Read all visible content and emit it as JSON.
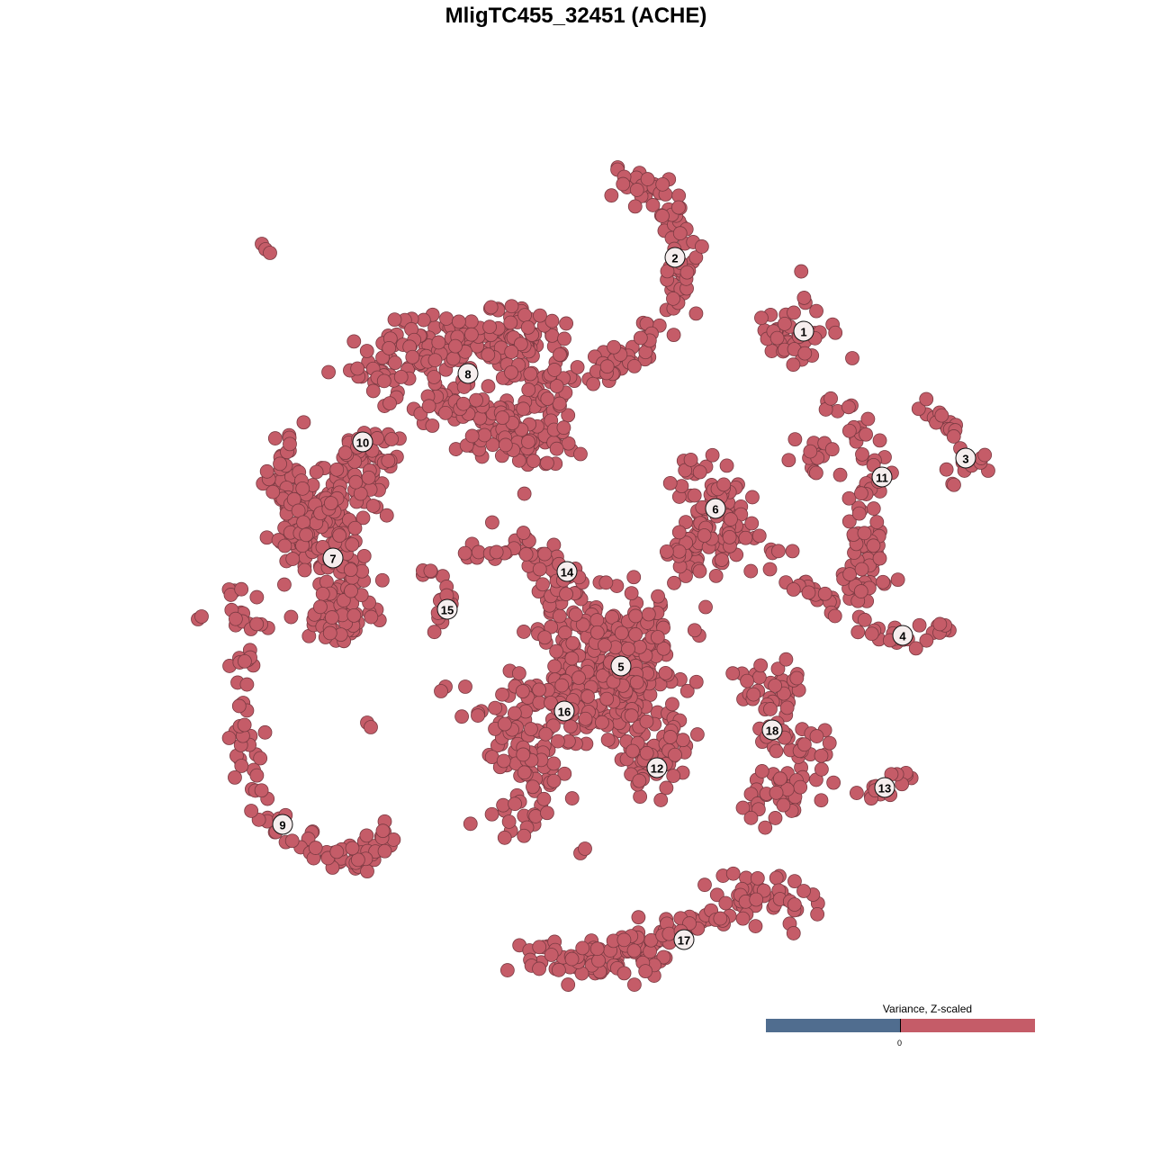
{
  "chart_data": {
    "type": "scatter",
    "title": "MligTC455_32451 (ACHE)",
    "xlabel": "",
    "ylabel": "",
    "xlim": [
      -50,
      50
    ],
    "ylim": [
      -50,
      50
    ],
    "grid": false,
    "axes_visible": false,
    "point_color": "#c55c68",
    "point_stroke": "#7a3a42",
    "legend": {
      "title": "Variance, Z-scaled",
      "placement": "bottom-right",
      "colors": [
        "#506d8f",
        "#c55c68"
      ],
      "tick_label": "0"
    },
    "clusters": [
      {
        "label": "1",
        "label_pos": [
          25.3,
          27.2
        ],
        "anchors": [
          [
            23,
            29
          ],
          [
            25,
            31
          ],
          [
            27,
            27
          ],
          [
            24,
            25
          ],
          [
            22,
            27
          ]
        ],
        "spread": 1.6,
        "n": 40
      },
      {
        "label": "2",
        "label_pos": [
          11,
          35.4
        ],
        "anchors": [
          [
            5,
            44.5
          ],
          [
            10,
            42
          ],
          [
            12.5,
            35
          ],
          [
            10,
            29
          ],
          [
            6,
            24
          ],
          [
            2.5,
            22.5
          ]
        ],
        "spread": 1.5,
        "n": 110
      },
      {
        "label": "3",
        "label_pos": [
          43.3,
          13.1
        ],
        "anchors": [
          [
            39,
            19
          ],
          [
            41,
            17
          ],
          [
            43,
            13
          ],
          [
            46,
            12
          ],
          [
            41,
            10.5
          ]
        ],
        "spread": 1.0,
        "n": 30
      },
      {
        "label": "4",
        "label_pos": [
          36.3,
          -6.6
        ],
        "anchors": [
          [
            22,
            3
          ],
          [
            25,
            -1
          ],
          [
            30,
            -5
          ],
          [
            36,
            -7
          ],
          [
            41.5,
            -6.5
          ]
        ],
        "spread": 1.0,
        "n": 50
      },
      {
        "label": "5",
        "label_pos": [
          5,
          -10
        ],
        "anchors": [
          [
            0,
            -5
          ],
          [
            5,
            -10
          ],
          [
            8,
            -6
          ],
          [
            3,
            -15
          ],
          [
            8,
            -14
          ],
          [
            -2,
            -10
          ],
          [
            4,
            -4
          ]
        ],
        "spread": 3.8,
        "n": 300
      },
      {
        "label": "6",
        "label_pos": [
          15.5,
          7.5
        ],
        "anchors": [
          [
            11,
            11
          ],
          [
            17,
            11
          ],
          [
            14,
            6
          ],
          [
            19,
            4
          ],
          [
            12,
            3
          ],
          [
            14,
            -1
          ]
        ],
        "spread": 2.3,
        "n": 110
      },
      {
        "label": "7",
        "label_pos": [
          -27,
          2
        ],
        "anchors": [
          [
            -30,
            3
          ],
          [
            -26,
            4
          ],
          [
            -25,
            -3
          ],
          [
            -25,
            -6
          ],
          [
            -28,
            -4
          ]
        ],
        "spread": 2.3,
        "n": 110
      },
      {
        "label": "8",
        "label_pos": [
          -12,
          22.5
        ],
        "anchors": [
          [
            -24,
            22
          ],
          [
            -18,
            25
          ],
          [
            -10,
            27
          ],
          [
            -5,
            26
          ],
          [
            -3,
            20
          ],
          [
            -4,
            14
          ],
          [
            -10,
            18
          ],
          [
            -16,
            19
          ]
        ],
        "spread": 2.8,
        "n": 330
      },
      {
        "label": "9",
        "label_pos": [
          -32.6,
          -27.6
        ],
        "anchors": [
          [
            -37,
            -1
          ],
          [
            -37,
            -6
          ],
          [
            -37,
            -14
          ],
          [
            -36.5,
            -22
          ],
          [
            -33,
            -27.5
          ],
          [
            -27,
            -32
          ],
          [
            -23,
            -31
          ],
          [
            -21,
            -28
          ]
        ],
        "spread": 1.2,
        "n": 110
      },
      {
        "label": "10",
        "label_pos": [
          -23.7,
          14.9
        ],
        "anchors": [
          [
            -33,
            13
          ],
          [
            -30,
            8
          ],
          [
            -31,
            4
          ],
          [
            -26,
            10
          ],
          [
            -22,
            14
          ],
          [
            -28,
            1
          ]
        ],
        "spread": 2.4,
        "n": 200
      },
      {
        "label": "11",
        "label_pos": [
          34,
          11
        ],
        "anchors": [
          [
            29,
            20
          ],
          [
            32,
            16
          ],
          [
            33,
            11
          ],
          [
            32,
            5
          ],
          [
            33,
            1
          ],
          [
            30,
            -1
          ],
          [
            35,
            -1
          ],
          [
            28,
            13
          ],
          [
            25,
            14
          ]
        ],
        "spread": 1.4,
        "n": 100
      },
      {
        "label": "12",
        "label_pos": [
          9,
          -21.3
        ],
        "anchors": [
          [
            6,
            -19
          ],
          [
            9,
            -21
          ],
          [
            11,
            -18
          ],
          [
            7,
            -24
          ]
        ],
        "spread": 2.0,
        "n": 60
      },
      {
        "label": "13",
        "label_pos": [
          34.3,
          -23.5
        ],
        "anchors": [
          [
            32,
            -23.8
          ],
          [
            34.5,
            -24
          ],
          [
            37,
            -22.2
          ]
        ],
        "spread": 0.8,
        "n": 14
      },
      {
        "label": "14",
        "label_pos": [
          -1,
          0.5
        ],
        "anchors": [
          [
            -11,
            3
          ],
          [
            -5,
            3
          ],
          [
            -3,
            1.5
          ],
          [
            -1,
            -1
          ],
          [
            -3,
            -2
          ]
        ],
        "spread": 1.4,
        "n": 55
      },
      {
        "label": "15",
        "label_pos": [
          -14.3,
          -3.7
        ],
        "anchors": [
          [
            -18,
            1.5
          ],
          [
            -15,
            -1
          ],
          [
            -14,
            -3
          ],
          [
            -16,
            -6.5
          ]
        ],
        "spread": 0.8,
        "n": 20
      },
      {
        "label": "16",
        "label_pos": [
          -1.3,
          -15
        ],
        "anchors": [
          [
            -9,
            -16
          ],
          [
            -5,
            -13
          ],
          [
            -1,
            -14
          ],
          [
            -4,
            -18
          ],
          [
            -8,
            -19
          ],
          [
            -3,
            -21
          ],
          [
            -6,
            -26
          ],
          [
            -8.5,
            -27
          ]
        ],
        "spread": 2.3,
        "n": 140
      },
      {
        "label": "17",
        "label_pos": [
          12,
          -40.4
        ],
        "anchors": [
          [
            -6,
            -42.5
          ],
          [
            0,
            -42.5
          ],
          [
            6,
            -42
          ],
          [
            10,
            -40
          ],
          [
            15,
            -37
          ],
          [
            21,
            -35
          ],
          [
            25,
            -37.5
          ]
        ],
        "spread": 1.8,
        "n": 170
      },
      {
        "label": "18",
        "label_pos": [
          21.8,
          -17.1
        ],
        "anchors": [
          [
            16,
            -11
          ],
          [
            21,
            -13
          ],
          [
            24,
            -13
          ],
          [
            20,
            -18
          ],
          [
            27,
            -19
          ],
          [
            25,
            -23
          ],
          [
            21,
            -24
          ],
          [
            20,
            -28
          ]
        ],
        "spread": 1.9,
        "n": 100
      }
    ],
    "unlabeled_points": [
      [
        -34.9,
        36.9
      ],
      [
        -34.5,
        36.3
      ],
      [
        -34,
        35.9
      ],
      [
        -42,
        -4.8
      ],
      [
        -41.6,
        -4.5
      ],
      [
        -23.2,
        -16.3
      ],
      [
        -22.8,
        -16.8
      ],
      [
        0.5,
        -30.8
      ],
      [
        1,
        -30.3
      ],
      [
        -14.5,
        -12.3
      ],
      [
        -15,
        -12.8
      ],
      [
        -12.3,
        -12.3
      ],
      [
        30.7,
        24.2
      ]
    ]
  }
}
